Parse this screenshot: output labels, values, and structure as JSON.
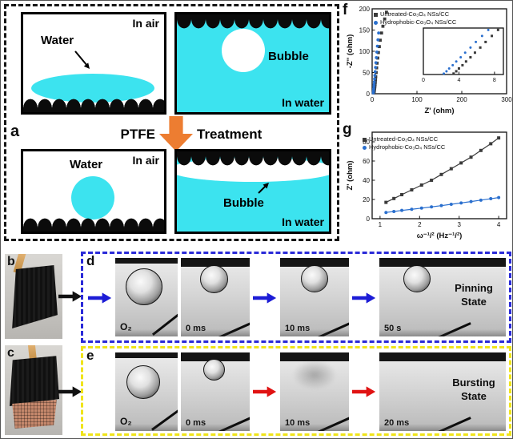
{
  "figure_labels": {
    "a": "a",
    "b": "b",
    "c": "c",
    "d": "d",
    "e": "e",
    "f": "f",
    "g": "g"
  },
  "colors": {
    "water": "#3ce3ef",
    "treatment_arrow": "#ed7d31",
    "pinning_arrow": "#1c1cd6",
    "bursting_arrow": "#e01212",
    "panel_d_border": "#2a2ad8",
    "panel_e_border": "#f0e41a",
    "untreated_series": "#3a3a3a",
    "hydrophobic_series": "#2a6fce"
  },
  "panel_a": {
    "ptfe_label": "PTFE",
    "treatment_label": "Treatment",
    "top_left": {
      "env": "In air",
      "object": "Water"
    },
    "top_right": {
      "env": "In water",
      "object": "Bubble"
    },
    "bottom_left": {
      "env": "In air",
      "object": "Water"
    },
    "bottom_right": {
      "env": "In water",
      "object": "Bubble"
    }
  },
  "panel_d": {
    "gas_label": "O₂",
    "frame_times": [
      "0 ms",
      "10 ms",
      "50 s"
    ],
    "state": [
      "Pinning",
      "State"
    ]
  },
  "panel_e": {
    "gas_label": "O₂",
    "frame_times": [
      "0 ms",
      "10 ms",
      "20 ms"
    ],
    "state": [
      "Bursting",
      "State"
    ]
  },
  "chart_data": [
    {
      "id": "f",
      "type": "scatter",
      "title": "",
      "xlabel": "Z' (ohm)",
      "ylabel": "-Z'' (ohm)",
      "xlim": [
        0,
        300
      ],
      "xticks": [
        0,
        100,
        200,
        300
      ],
      "ylim": [
        0,
        200
      ],
      "yticks": [
        0,
        50,
        100,
        150,
        200
      ],
      "legend_position": "top",
      "grid": false,
      "series": [
        {
          "name": "Untreated-Co₃O₄ NSs/CC",
          "color": "#3a3a3a",
          "marker": "square",
          "x": [
            4,
            4.5,
            5,
            5.5,
            6,
            6.5,
            7,
            7.5,
            8,
            9,
            10,
            11,
            12.5,
            14,
            16,
            18,
            21,
            24,
            28,
            32
          ],
          "y": [
            2,
            5,
            8,
            12,
            16,
            21,
            27,
            33,
            40,
            50,
            61,
            72,
            84,
            97,
            111,
            126,
            143,
            159,
            176,
            192
          ]
        },
        {
          "name": "Hydrophobic-Co₃O₄ NSs/CC",
          "color": "#2a6fce",
          "marker": "circle",
          "x": [
            2.5,
            2.8,
            3.1,
            3.5,
            3.9,
            4.3,
            4.8,
            5.4,
            6,
            6.7,
            7.5,
            8.4,
            9.4,
            10.5,
            11.7,
            13,
            14.5
          ],
          "y": [
            2,
            5,
            8,
            12,
            17,
            22,
            28,
            35,
            43,
            52,
            62,
            73,
            85,
            98,
            112,
            127,
            143
          ]
        }
      ],
      "inset": {
        "xlim": [
          0,
          9
        ],
        "xticks": [
          0,
          4,
          8
        ],
        "ylim": [
          0,
          10
        ],
        "yticks": [],
        "series": [
          {
            "name": "Untreated-Co₃O₄ NSs/CC",
            "color": "#3a3a3a",
            "marker": "square",
            "x": [
              3.4,
              3.7,
              4.0,
              4.4,
              4.8,
              5.3,
              5.8,
              6.4,
              7.0,
              7.7,
              8.4
            ],
            "y": [
              0.2,
              0.7,
              1.3,
              2.0,
              2.8,
              3.7,
              4.7,
              5.8,
              7.0,
              8.3,
              9.6
            ]
          },
          {
            "name": "Hydrophobic-Co₃O₄ NSs/CC",
            "color": "#2a6fce",
            "marker": "circle",
            "x": [
              2.3,
              2.6,
              2.9,
              3.3,
              3.7,
              4.2,
              4.7,
              5.3,
              5.9,
              6.6,
              7.3
            ],
            "y": [
              0.2,
              0.7,
              1.3,
              2.0,
              2.8,
              3.7,
              4.7,
              5.8,
              7.0,
              8.3,
              9.6
            ]
          }
        ]
      }
    },
    {
      "id": "g",
      "type": "line",
      "title": "",
      "xlabel": "ω⁻¹/² (Hz⁻¹/²)",
      "ylabel": "Z' (ohm)",
      "xlim": [
        0.8,
        4.2
      ],
      "xticks": [
        1,
        2,
        3,
        4
      ],
      "ylim": [
        0,
        90
      ],
      "yticks": [
        0,
        20,
        40,
        60,
        80
      ],
      "legend_position": "top-left",
      "grid": false,
      "series": [
        {
          "name": "Untreated-Co₃O₄ NSs/CC",
          "color": "#3a3a3a",
          "marker": "square",
          "x": [
            1.15,
            1.35,
            1.55,
            1.8,
            2.05,
            2.3,
            2.55,
            2.8,
            3.05,
            3.3,
            3.55,
            3.8,
            4.0
          ],
          "y": [
            17,
            21,
            25,
            30,
            35,
            40,
            46,
            52,
            58,
            64,
            71,
            78,
            84
          ]
        },
        {
          "name": "Hydrophobic-Co₃O₄ NSs/CC",
          "color": "#2a6fce",
          "marker": "circle",
          "x": [
            1.15,
            1.35,
            1.55,
            1.8,
            2.05,
            2.3,
            2.55,
            2.8,
            3.05,
            3.3,
            3.55,
            3.8,
            4.0
          ],
          "y": [
            6.5,
            7.5,
            8.6,
            9.8,
            11,
            12.3,
            13.6,
            15,
            16.4,
            17.8,
            19.3,
            20.8,
            22
          ]
        }
      ]
    }
  ]
}
